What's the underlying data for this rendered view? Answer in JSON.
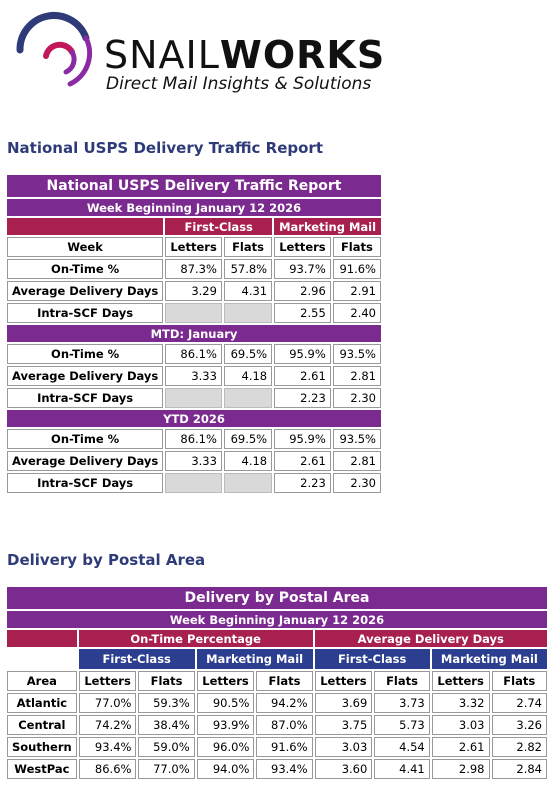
{
  "logo": {
    "brand_part1": "SNAIL",
    "brand_part2": "WORKS",
    "tagline": "Direct Mail Insights & Solutions",
    "colors": {
      "arc_navy": "#2e3b78",
      "arc_purple": "#8a2ba3",
      "arc_magenta": "#c2185b"
    }
  },
  "report1": {
    "heading": "National USPS Delivery Traffic Report",
    "table_title": "National USPS Delivery Traffic Report",
    "week_banner": "Week Beginning January 12 2026",
    "group_first_class": "First-Class",
    "group_marketing": "Marketing Mail",
    "col_week": "Week",
    "col_letters": "Letters",
    "col_flats": "Flats",
    "week_rows": [
      {
        "label": "On-Time %",
        "fc_letters": "87.3%",
        "fc_flats": "57.8%",
        "mm_letters": "93.7%",
        "mm_flats": "91.6%"
      },
      {
        "label": "Average Delivery Days",
        "fc_letters": "3.29",
        "fc_flats": "4.31",
        "mm_letters": "2.96",
        "mm_flats": "2.91"
      },
      {
        "label": "Intra-SCF Days",
        "fc_letters": "",
        "fc_flats": "",
        "mm_letters": "2.55",
        "mm_flats": "2.40"
      }
    ],
    "mtd_banner": "MTD: January",
    "mtd_rows": [
      {
        "label": "On-Time %",
        "fc_letters": "86.1%",
        "fc_flats": "69.5%",
        "mm_letters": "95.9%",
        "mm_flats": "93.5%"
      },
      {
        "label": "Average Delivery Days",
        "fc_letters": "3.33",
        "fc_flats": "4.18",
        "mm_letters": "2.61",
        "mm_flats": "2.81"
      },
      {
        "label": "Intra-SCF Days",
        "fc_letters": "",
        "fc_flats": "",
        "mm_letters": "2.23",
        "mm_flats": "2.30"
      }
    ],
    "ytd_banner": "YTD 2026",
    "ytd_rows": [
      {
        "label": "On-Time %",
        "fc_letters": "86.1%",
        "fc_flats": "69.5%",
        "mm_letters": "95.9%",
        "mm_flats": "93.5%"
      },
      {
        "label": "Average Delivery Days",
        "fc_letters": "3.33",
        "fc_flats": "4.18",
        "mm_letters": "2.61",
        "mm_flats": "2.81"
      },
      {
        "label": "Intra-SCF Days",
        "fc_letters": "",
        "fc_flats": "",
        "mm_letters": "2.23",
        "mm_flats": "2.30"
      }
    ]
  },
  "report2": {
    "heading": "Delivery by Postal Area",
    "table_title": "Delivery by Postal Area",
    "week_banner": "Week Beginning January 12 2026",
    "group_ontime": "On-Time Percentage",
    "group_avgdays": "Average Delivery Days",
    "sub_first_class": "First-Class",
    "sub_marketing": "Marketing Mail",
    "col_area": "Area",
    "col_letters": "Letters",
    "col_flats": "Flats",
    "rows": [
      {
        "area": "Atlantic",
        "ot_fc_l": "77.0%",
        "ot_fc_f": "59.3%",
        "ot_mm_l": "90.5%",
        "ot_mm_f": "94.2%",
        "ad_fc_l": "3.69",
        "ad_fc_f": "3.73",
        "ad_mm_l": "3.32",
        "ad_mm_f": "2.74"
      },
      {
        "area": "Central",
        "ot_fc_l": "74.2%",
        "ot_fc_f": "38.4%",
        "ot_mm_l": "93.9%",
        "ot_mm_f": "87.0%",
        "ad_fc_l": "3.75",
        "ad_fc_f": "5.73",
        "ad_mm_l": "3.03",
        "ad_mm_f": "3.26"
      },
      {
        "area": "Southern",
        "ot_fc_l": "93.4%",
        "ot_fc_f": "59.0%",
        "ot_mm_l": "96.0%",
        "ot_mm_f": "91.6%",
        "ad_fc_l": "3.03",
        "ad_fc_f": "4.54",
        "ad_mm_l": "2.61",
        "ad_mm_f": "2.82"
      },
      {
        "area": "WestPac",
        "ot_fc_l": "86.6%",
        "ot_fc_f": "77.0%",
        "ot_mm_l": "94.0%",
        "ot_mm_f": "93.4%",
        "ad_fc_l": "3.60",
        "ad_fc_f": "4.41",
        "ad_mm_l": "2.98",
        "ad_mm_f": "2.84"
      }
    ]
  }
}
